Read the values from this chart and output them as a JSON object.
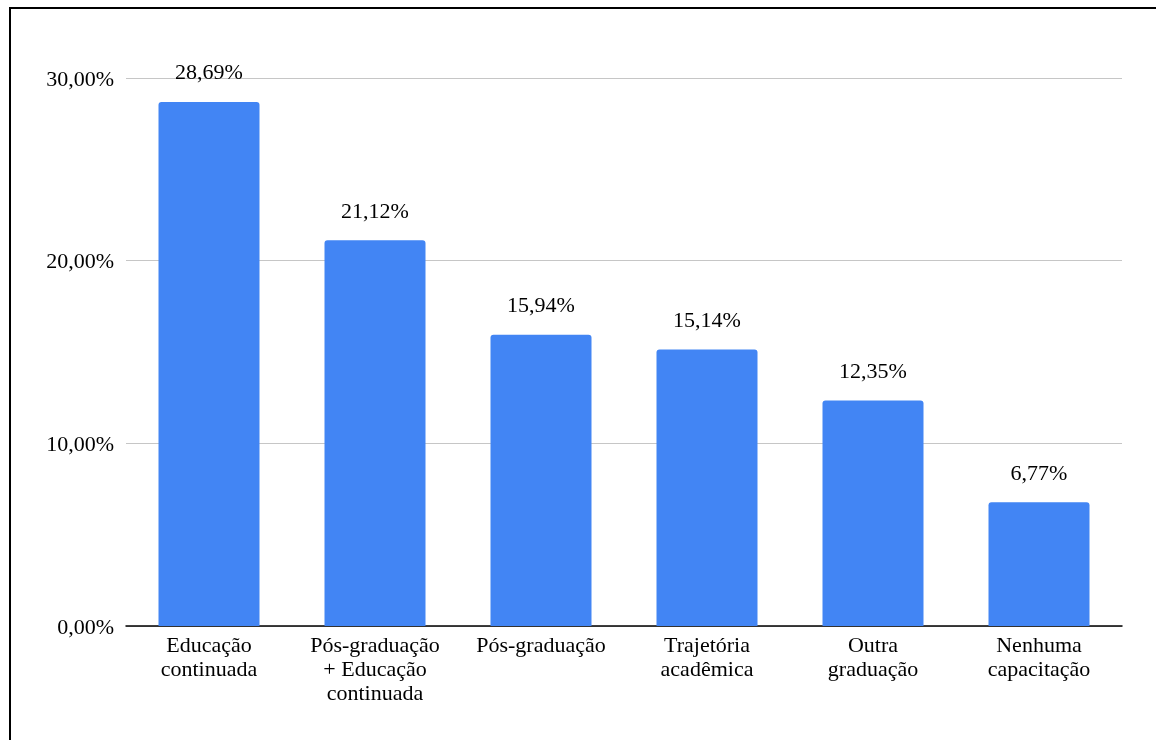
{
  "chart_data": {
    "type": "bar",
    "categories": [
      "Educação continuada",
      "Pós-graduação + Educação continuada",
      "Pós-graduação",
      "Trajetória acadêmica",
      "Outra graduação",
      "Nenhuma capacitação"
    ],
    "values": [
      28.69,
      21.12,
      15.94,
      15.14,
      12.35,
      6.77
    ],
    "value_labels": [
      "28,69%",
      "21,12%",
      "15,94%",
      "15,14%",
      "12,35%",
      "6,77%"
    ],
    "color": "#4285f4",
    "ylim": [
      0,
      30
    ],
    "yticks": [
      {
        "value": 0,
        "label": "0,00%"
      },
      {
        "value": 10,
        "label": "10,00%"
      },
      {
        "value": 20,
        "label": "20,00%"
      },
      {
        "value": 30,
        "label": "30,00%"
      }
    ],
    "grid": "y"
  }
}
